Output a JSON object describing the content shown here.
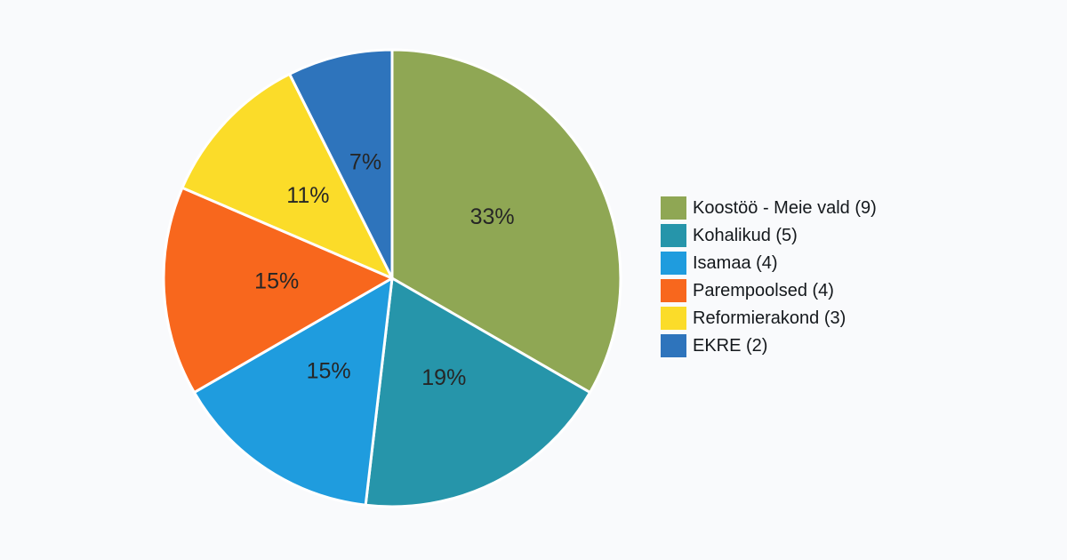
{
  "page": {
    "background": "#f9fafc"
  },
  "chart_data": {
    "type": "pie",
    "title": "",
    "total_seats": 27,
    "start_angle_deg": 0,
    "direction": "clockwise",
    "legend_position": "right",
    "grid": false,
    "slice_border_color": "#ffffff",
    "percent_label_color": "#262626",
    "slices": [
      {
        "name": "Koostöö - Meie vald",
        "seats": 9,
        "percent": 33,
        "percent_label": "33%",
        "legend_label": "Koostöö - Meie vald (9)",
        "color": "#8fa754"
      },
      {
        "name": "Kohalikud",
        "seats": 5,
        "percent": 19,
        "percent_label": "19%",
        "legend_label": "Kohalikud (5)",
        "color": "#2695aa"
      },
      {
        "name": "Isamaa",
        "seats": 4,
        "percent": 15,
        "percent_label": "15%",
        "legend_label": "Isamaa (4)",
        "color": "#1f9cde"
      },
      {
        "name": "Parempoolsed",
        "seats": 4,
        "percent": 15,
        "percent_label": "15%",
        "legend_label": "Parempoolsed (4)",
        "color": "#f8671d"
      },
      {
        "name": "Reformierakond",
        "seats": 3,
        "percent": 11,
        "percent_label": "11%",
        "legend_label": "Reformierakond (3)",
        "color": "#fbdc29"
      },
      {
        "name": "EKRE",
        "seats": 2,
        "percent": 7,
        "percent_label": "7%",
        "legend_label": "EKRE (2)",
        "color": "#2e74bc"
      }
    ]
  }
}
